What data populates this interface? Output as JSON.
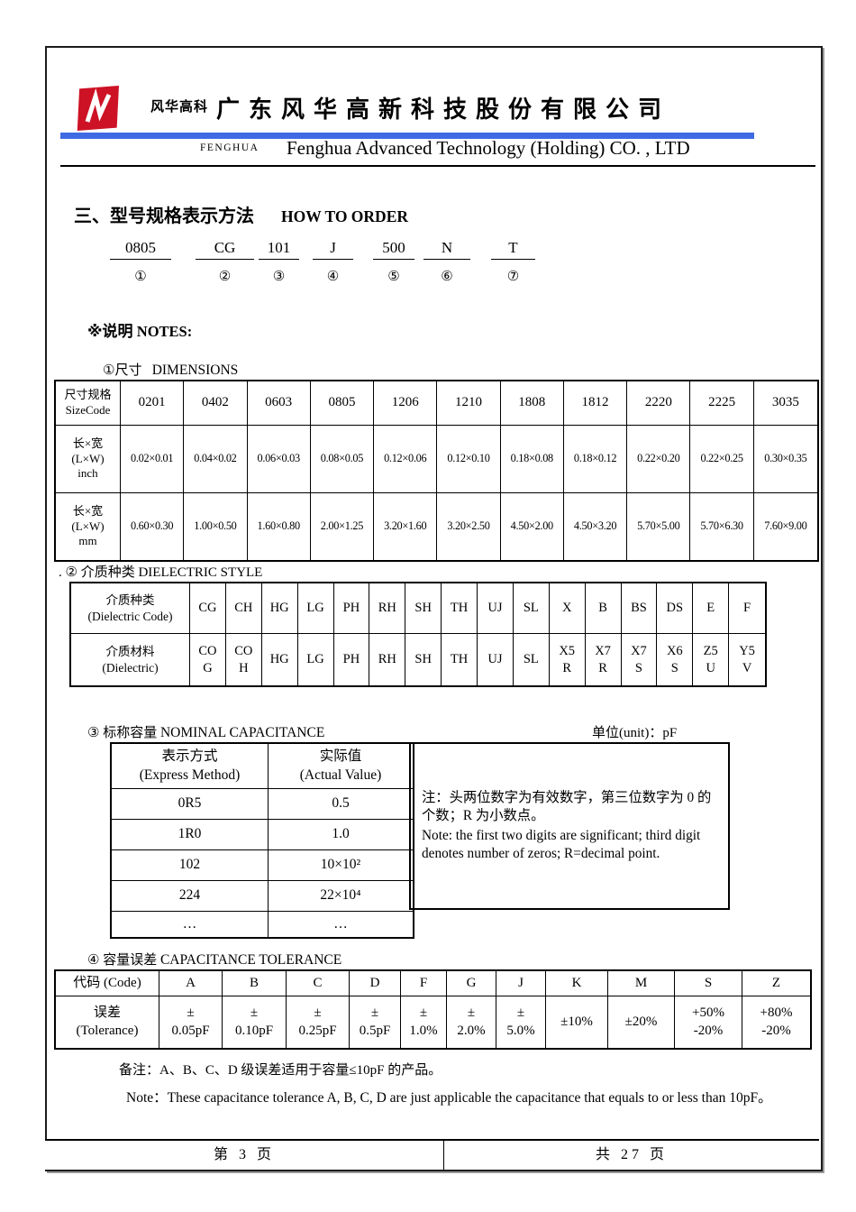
{
  "header": {
    "logo_text": "风华高科",
    "company_cn": "广东风华高新科技股份有限公司",
    "brand_small": "FENGHUA",
    "company_en": "Fenghua Advanced Technology (Holding) CO. , LTD",
    "accent_blue": "#3e6be4",
    "logo_red": "#cd1226"
  },
  "section": {
    "title_cn": "三、型号规格表示方法",
    "title_en": "HOW TO ORDER"
  },
  "order_code": {
    "parts": [
      "0805",
      "CG",
      "101",
      "J",
      "500",
      "N",
      "T"
    ],
    "markers": [
      "①",
      "②",
      "③",
      "④",
      "⑤",
      "⑥",
      "⑦"
    ]
  },
  "notes_label": {
    "cn": "※说明",
    "en": "NOTES:"
  },
  "dimensions": {
    "label_cn": "①尺寸",
    "label_en": "DIMENSIONS",
    "rows": [
      [
        "尺寸规格\nSizeCode",
        "0201",
        "0402",
        "0603",
        "0805",
        "1206",
        "1210",
        "1808",
        "1812",
        "2220",
        "2225",
        "3035"
      ],
      [
        "长×宽\n(L×W)\ninch",
        "0.02×0.01",
        "0.04×0.02",
        "0.06×0.03",
        "0.08×0.05",
        "0.12×0.06",
        "0.12×0.10",
        "0.18×0.08",
        "0.18×0.12",
        "0.22×0.20",
        "0.22×0.25",
        "0.30×0.35"
      ],
      [
        "长×宽\n(L×W)\nmm",
        "0.60×0.30",
        "1.00×0.50",
        "1.60×0.80",
        "2.00×1.25",
        "3.20×1.60",
        "3.20×2.50",
        "4.50×2.00",
        "4.50×3.20",
        "5.70×5.00",
        "5.70×6.30",
        "7.60×9.00"
      ]
    ]
  },
  "dielectric": {
    "label": ".  ② 介质种类 DIELECTRIC STYLE",
    "rows": [
      [
        "介质种类\n(Dielectric Code)",
        "CG",
        "CH",
        "HG",
        "LG",
        "PH",
        "RH",
        "SH",
        "TH",
        "UJ",
        "SL",
        "X",
        "B",
        "BS",
        "DS",
        "E",
        "F"
      ],
      [
        "介质材料\n(Dielectric)",
        "CO\nG",
        "CO\nH",
        "HG",
        "LG",
        "PH",
        "RH",
        "SH",
        "TH",
        "UJ",
        "SL",
        "X5\nR",
        "X7\nR",
        "X7\nS",
        "X6\nS",
        "Z5\nU",
        "Y5\nV"
      ]
    ]
  },
  "capacitance": {
    "label_cn": "③ 标称容量",
    "label_en": "NOMINAL CAPACITANCE",
    "unit_label": "单位(unit)：pF",
    "rows": [
      [
        "表示方式\n(Express Method)",
        "实际值\n(Actual Value)"
      ],
      [
        "0R5",
        "0.5"
      ],
      [
        "1R0",
        "1.0"
      ],
      [
        "102",
        "10×10²"
      ],
      [
        "224",
        "22×10⁴"
      ],
      [
        "…",
        "…"
      ]
    ],
    "note_cn": "注：头两位数字为有效数字，第三位数字为 0 的个数；R 为小数点。",
    "note_en": "Note: the first two digits are significant; third digit denotes number of zeros; R=decimal point."
  },
  "tolerance": {
    "label_cn": "④ 容量误差",
    "label_en": "CAPACITANCE TOLERANCE",
    "rows": [
      [
        "代码 (Code)",
        "A",
        "B",
        "C",
        "D",
        "F",
        "G",
        "J",
        "K",
        "M",
        "S",
        "Z"
      ],
      [
        "误差\n(Tolerance)",
        "±\n0.05pF",
        "±\n0.10pF",
        "±\n0.25pF",
        "±\n0.5pF",
        "±\n1.0%",
        "±\n2.0%",
        "±\n5.0%",
        "±10%",
        "±20%",
        "+50%\n-20%",
        "+80%\n-20%"
      ]
    ]
  },
  "remarks": {
    "cn": "备注：A、B、C、D 级误差适用于容量≤10pF 的产品。",
    "en": "Note：These capacitance tolerance A, B, C, D are just applicable the capacitance that equals to or less than 10pF。"
  },
  "footer": {
    "page_label": "第 3 页",
    "total_label": "共 27 页"
  }
}
